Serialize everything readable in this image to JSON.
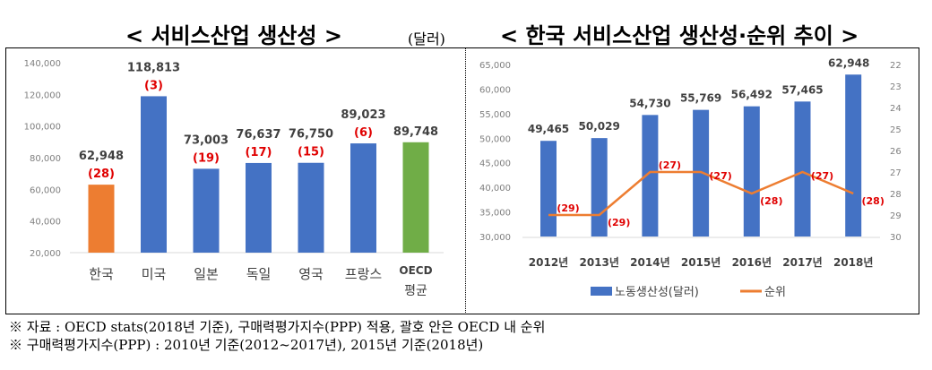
{
  "left_title": "< 서비스산업 생산성 >",
  "unit": "(달러)",
  "right_title": "< 한국 서비스산업 생산성·순위 추이 >",
  "notes": [
    "※ 자료 : OECD stats(2018년 기준), 구매력평가지수(PPP) 적용, 괄호 안은 OECD 내 순위",
    "※ 구매력평가지수(PPP) : 2010년 기준(2012~2017년), 2015년 기준(2018년)"
  ],
  "chart_data": [
    {
      "type": "bar",
      "title": "< 서비스산업 생산성 >",
      "ylabel": "(달러)",
      "categories": [
        "한국",
        "미국",
        "일본",
        "독일",
        "영국",
        "프랑스",
        "OECD 평균"
      ],
      "values": [
        62948,
        118813,
        73003,
        76637,
        76750,
        89023,
        89748
      ],
      "value_labels": [
        "62,948",
        "118,813",
        "73,003",
        "76,637",
        "76,750",
        "89,023",
        "89,748"
      ],
      "ranks": [
        "(28)",
        "(3)",
        "(19)",
        "(17)",
        "(15)",
        "(6)",
        ""
      ],
      "colors": [
        "#ED7D31",
        "#4472C4",
        "#4472C4",
        "#4472C4",
        "#4472C4",
        "#4472C4",
        "#70AD47"
      ],
      "ylim": [
        20000,
        140000
      ],
      "yticks": [
        "20,000",
        "40,000",
        "60,000",
        "80,000",
        "100,000",
        "120,000",
        "140,000"
      ]
    },
    {
      "type": "bar+line",
      "title": "< 한국 서비스산업 생산성·순위 추이 >",
      "categories": [
        "2012년",
        "2013년",
        "2014년",
        "2015년",
        "2016년",
        "2017년",
        "2018년"
      ],
      "series": [
        {
          "name": "노동생산성(달러)",
          "type": "bar",
          "color": "#4472C4",
          "values": [
            49465,
            50029,
            54730,
            55769,
            56492,
            57465,
            62948
          ],
          "labels": [
            "49,465",
            "50,029",
            "54,730",
            "55,769",
            "56,492",
            "57,465",
            "62,948"
          ]
        },
        {
          "name": "순위",
          "type": "line",
          "color": "#ED7D31",
          "axis": "right-inverted",
          "values": [
            29,
            29,
            27,
            27,
            28,
            27,
            28
          ],
          "labels": [
            "(29)",
            "(29)",
            "(27)",
            "(27)",
            "(28)",
            "(27)",
            "(28)"
          ]
        }
      ],
      "ylim": [
        30000,
        65000
      ],
      "yticks": [
        "30,000",
        "35,000",
        "40,000",
        "45,000",
        "50,000",
        "55,000",
        "60,000",
        "65,000"
      ],
      "y2lim": [
        22,
        30
      ],
      "y2ticks": [
        "22",
        "23",
        "24",
        "25",
        "26",
        "27",
        "28",
        "29",
        "30"
      ],
      "legend": "bottom"
    }
  ]
}
